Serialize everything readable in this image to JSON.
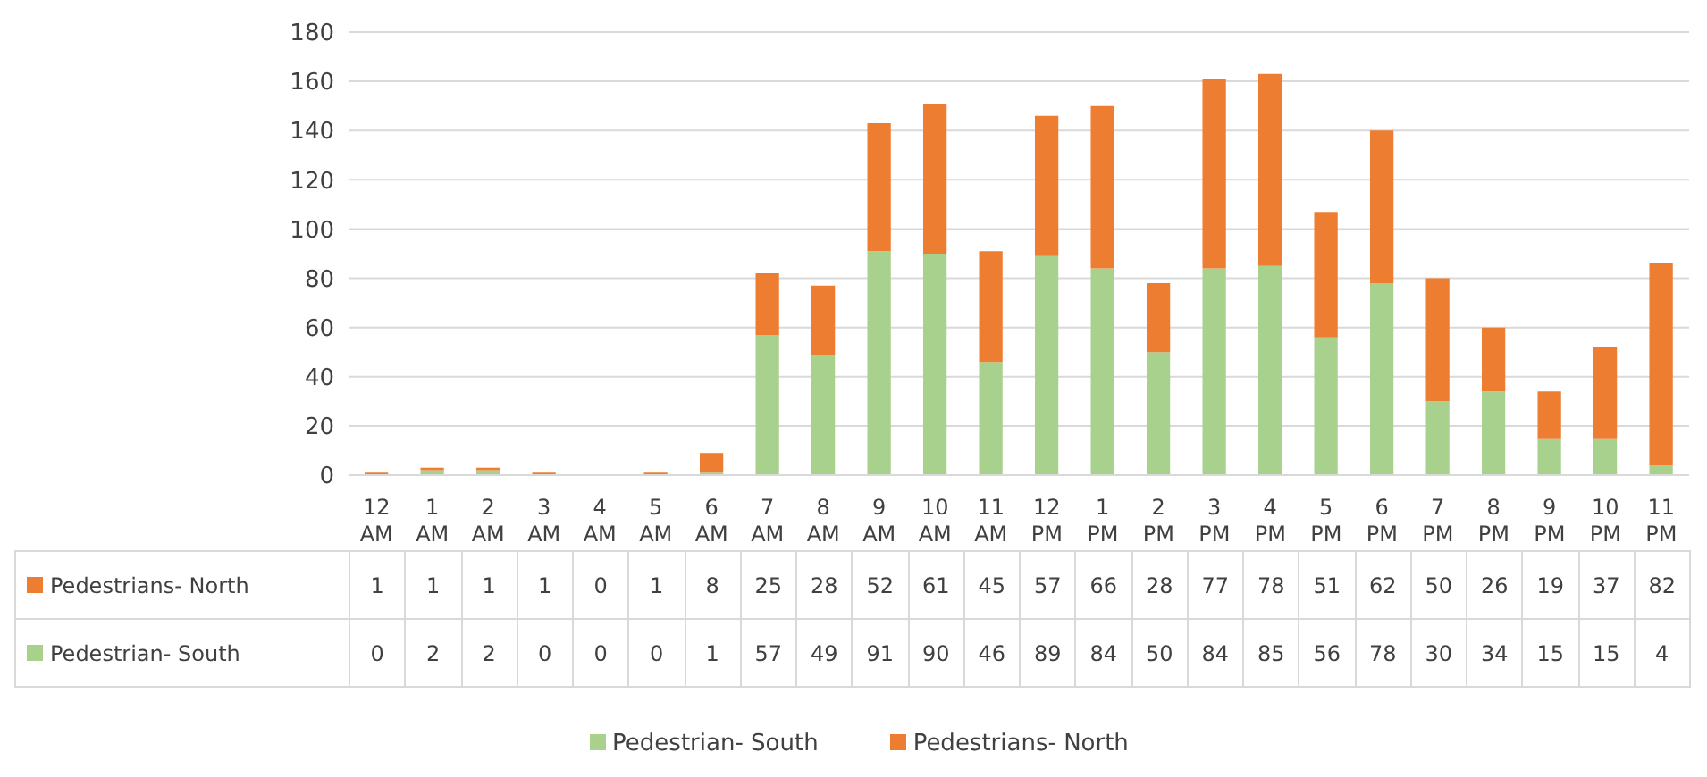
{
  "chart_data": {
    "type": "bar",
    "stacked": true,
    "categories": [
      "12 AM",
      "1 AM",
      "2 AM",
      "3 AM",
      "4 AM",
      "5 AM",
      "6 AM",
      "7 AM",
      "8 AM",
      "9 AM",
      "10 AM",
      "11 AM",
      "12 PM",
      "1 PM",
      "2 PM",
      "3 PM",
      "4 PM",
      "5 PM",
      "6 PM",
      "7 PM",
      "8 PM",
      "9 PM",
      "10 PM",
      "11 PM"
    ],
    "series": [
      {
        "name": "Pedestrian- South",
        "color": "#a9d18e",
        "values": [
          0,
          2,
          2,
          0,
          0,
          0,
          1,
          57,
          49,
          91,
          90,
          46,
          89,
          84,
          50,
          84,
          85,
          56,
          78,
          30,
          34,
          15,
          15,
          4
        ]
      },
      {
        "name": "Pedestrians- North",
        "color": "#ed7d31",
        "values": [
          1,
          1,
          1,
          1,
          0,
          1,
          8,
          25,
          28,
          52,
          61,
          45,
          57,
          66,
          28,
          77,
          78,
          51,
          62,
          50,
          26,
          19,
          37,
          82
        ]
      }
    ],
    "ylim": [
      0,
      180
    ],
    "yticks": [
      0,
      20,
      40,
      60,
      80,
      100,
      120,
      140,
      160,
      180
    ],
    "grid": "y",
    "legend": "bottom",
    "data_labels": true
  }
}
